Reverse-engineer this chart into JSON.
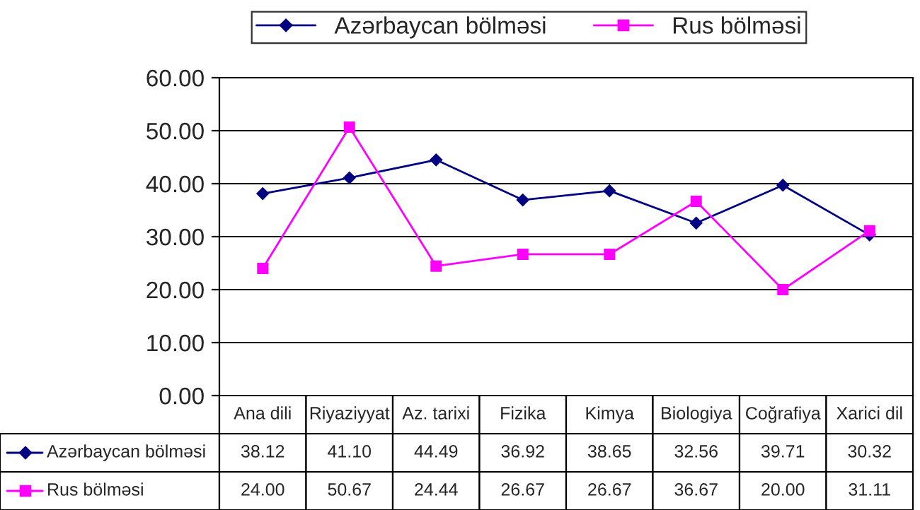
{
  "chart_data": {
    "type": "line",
    "categories": [
      "Ana dili",
      "Riyaziyyat",
      "Az. tarixi",
      "Fizika",
      "Kimya",
      "Biologiya",
      "Coğrafiya",
      "Xarici dil"
    ],
    "series": [
      {
        "name": "Azərbaycan bölməsi",
        "color": "#000080",
        "marker": "diamond",
        "values": [
          38.12,
          41.1,
          44.49,
          36.92,
          38.65,
          32.56,
          39.71,
          30.32
        ],
        "value_labels": [
          "38.12",
          "41.10",
          "44.49",
          "36.92",
          "38.65",
          "32.56",
          "39.71",
          "30.32"
        ]
      },
      {
        "name": "Rus bölməsi",
        "color": "#ff00ff",
        "marker": "square",
        "values": [
          24.0,
          50.67,
          24.44,
          26.67,
          26.67,
          36.67,
          20.0,
          31.11
        ],
        "value_labels": [
          "24.00",
          "50.67",
          "24.44",
          "26.67",
          "26.67",
          "36.67",
          "20.00",
          "31.11"
        ]
      }
    ],
    "ylim": [
      0,
      60
    ],
    "yticks": [
      {
        "value": 0,
        "label": "0.00"
      },
      {
        "value": 10,
        "label": "10.00"
      },
      {
        "value": 20,
        "label": "20.00"
      },
      {
        "value": 30,
        "label": "30.00"
      },
      {
        "value": 40,
        "label": "40.00"
      },
      {
        "value": 50,
        "label": "50.00"
      },
      {
        "value": 60,
        "label": "60.00"
      }
    ],
    "grid": "y",
    "legend": "top",
    "line_style": "solid"
  }
}
